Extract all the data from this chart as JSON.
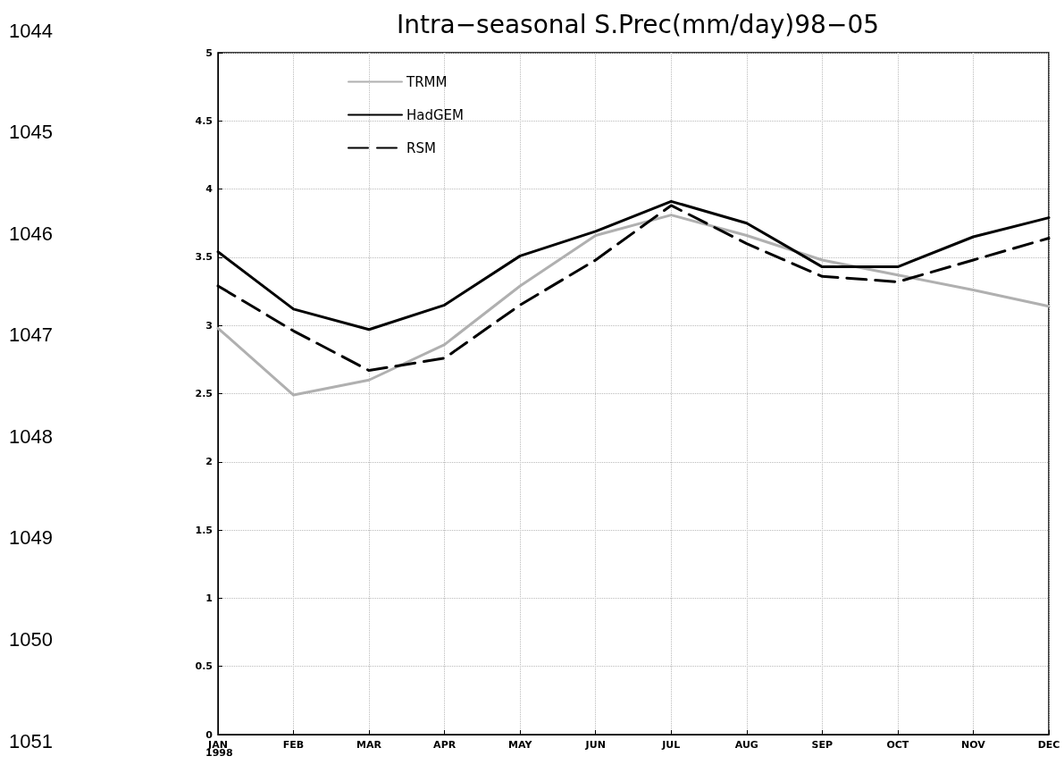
{
  "chart_data": {
    "type": "line",
    "title": "Intra−seasonal S.Prec(mm/day)98−05",
    "categories": [
      "JAN",
      "FEB",
      "MAR",
      "APR",
      "MAY",
      "JUN",
      "JUL",
      "AUG",
      "SEP",
      "OCT",
      "NOV",
      "DEC"
    ],
    "series": [
      {
        "name": "TRMM",
        "color": "#b0b0b0",
        "line_style": "solid",
        "values": [
          2.98,
          2.49,
          2.6,
          2.86,
          3.29,
          3.66,
          3.81,
          3.66,
          3.48,
          3.37,
          3.26,
          3.14
        ]
      },
      {
        "name": "HadGEM",
        "color": "#000000",
        "line_style": "solid",
        "values": [
          3.54,
          3.12,
          2.97,
          3.15,
          3.51,
          3.69,
          3.91,
          3.75,
          3.43,
          3.43,
          3.65,
          3.79
        ]
      },
      {
        "name": "RSM",
        "color": "#000000",
        "line_style": "dashed",
        "values": [
          3.29,
          2.96,
          2.67,
          2.76,
          3.15,
          3.48,
          3.88,
          3.6,
          3.36,
          3.32,
          3.48,
          3.64
        ]
      }
    ],
    "ylim": [
      0,
      5
    ],
    "yticks": [
      0,
      0.5,
      1,
      1.5,
      2,
      2.5,
      3,
      3.5,
      4,
      4.5,
      5
    ],
    "grid": true,
    "legend": "top left",
    "marker": "none",
    "annotations": [
      "1998",
      "1044",
      "1045",
      "1046",
      "1047",
      "1048",
      "1049",
      "1050",
      "1051"
    ]
  }
}
